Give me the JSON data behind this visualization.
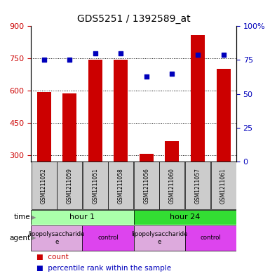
{
  "title": "GDS5251 / 1392589_at",
  "samples": [
    "GSM1211052",
    "GSM1211059",
    "GSM1211051",
    "GSM1211058",
    "GSM1211056",
    "GSM1211060",
    "GSM1211057",
    "GSM1211061"
  ],
  "counts": [
    595,
    588,
    745,
    745,
    305,
    365,
    858,
    700
  ],
  "percentiles": [
    75,
    75,
    80,
    80,
    63,
    65,
    79,
    79
  ],
  "ylim_left": [
    270,
    900
  ],
  "ylim_right": [
    0,
    100
  ],
  "yticks_left": [
    300,
    450,
    600,
    750,
    900
  ],
  "yticks_right": [
    0,
    25,
    50,
    75,
    100
  ],
  "bar_color": "#cc0000",
  "dot_color": "#0000bb",
  "bar_width": 0.55,
  "time_groups": [
    {
      "label": "hour 1",
      "start": 0,
      "end": 4,
      "color": "#aaffaa"
    },
    {
      "label": "hour 24",
      "start": 4,
      "end": 8,
      "color": "#33dd33"
    }
  ],
  "agent_groups": [
    {
      "label": "lipopolysaccharide\ne",
      "start": 0,
      "end": 2,
      "color": "#ddaadd"
    },
    {
      "label": "control",
      "start": 2,
      "end": 4,
      "color": "#dd44ee"
    },
    {
      "label": "lipopolysaccharide\ne",
      "start": 4,
      "end": 6,
      "color": "#ddaadd"
    },
    {
      "label": "control",
      "start": 6,
      "end": 8,
      "color": "#dd44ee"
    }
  ],
  "grid_ticks": [
    300,
    450,
    600,
    750
  ],
  "left_tick_color": "#cc0000",
  "right_tick_color": "#0000bb",
  "background_color": "#ffffff"
}
